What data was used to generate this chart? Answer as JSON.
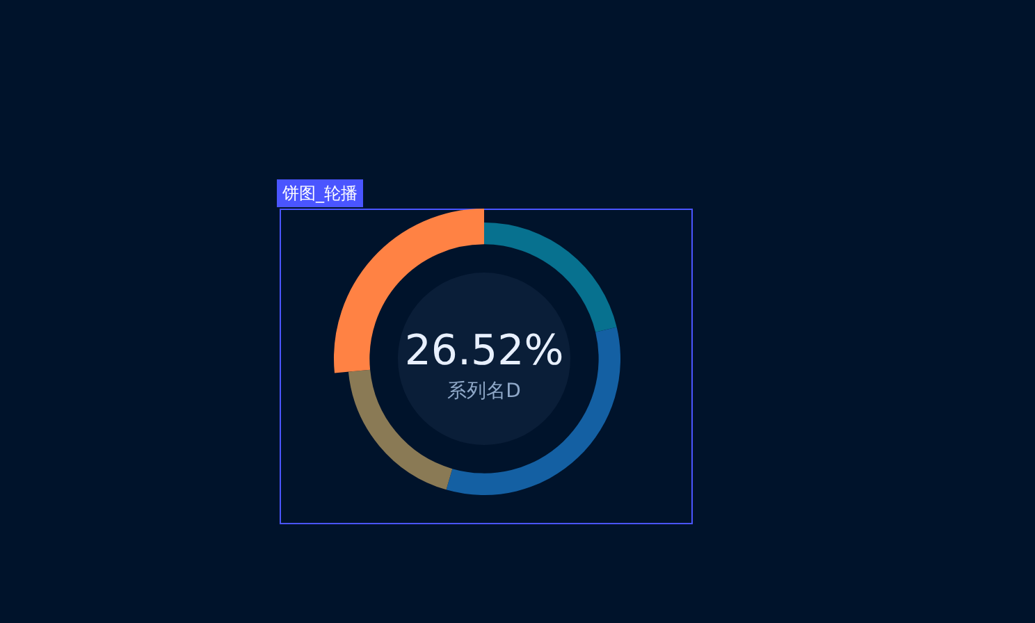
{
  "chart_data": {
    "type": "donut",
    "categories": [
      null,
      null,
      null,
      "系列名D"
    ],
    "values": [
      21.28,
      33.2,
      19.0,
      26.52
    ],
    "colors": [
      "#07718f",
      "#1460a3",
      "#8a7a55",
      "#ff8244"
    ],
    "value_labels": [
      null,
      null,
      null,
      "26.52%"
    ],
    "annotations": [
      "饼图_轮播"
    ],
    "legend": false
  }
}
